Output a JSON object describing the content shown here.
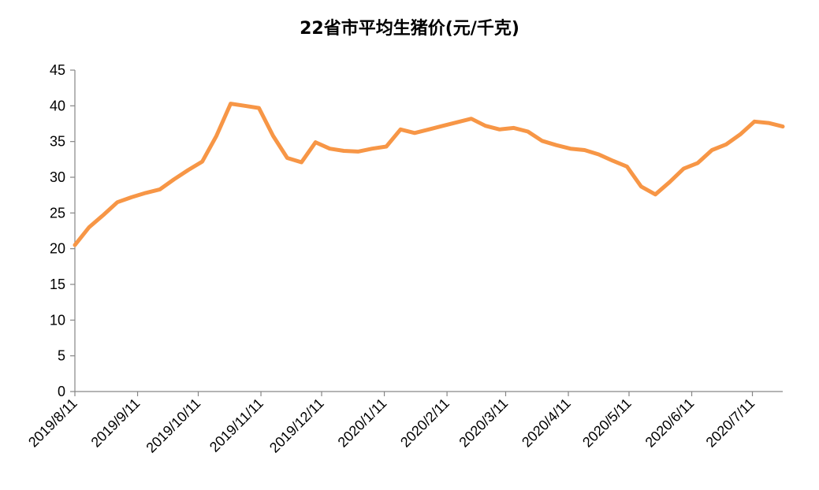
{
  "chart_data": {
    "type": "line",
    "title": "22省市平均生猪价(元/千克)",
    "xlabel": "",
    "ylabel": "",
    "ylim": [
      0,
      45
    ],
    "yticks": [
      0,
      5,
      10,
      15,
      20,
      25,
      30,
      35,
      40,
      45
    ],
    "x_range": [
      "2019-08-11",
      "2020-07-26"
    ],
    "x_ticks": [
      {
        "label": "2019/8/11",
        "date": "2019-08-11"
      },
      {
        "label": "2019/9/11",
        "date": "2019-09-11"
      },
      {
        "label": "2019/10/11",
        "date": "2019-10-11"
      },
      {
        "label": "2019/11/11",
        "date": "2019-11-11"
      },
      {
        "label": "2019/12/11",
        "date": "2019-12-11"
      },
      {
        "label": "2020/1/11",
        "date": "2020-01-11"
      },
      {
        "label": "2020/2/11",
        "date": "2020-02-11"
      },
      {
        "label": "2020/3/11",
        "date": "2020-03-11"
      },
      {
        "label": "2020/4/11",
        "date": "2020-04-11"
      },
      {
        "label": "2020/5/11",
        "date": "2020-05-11"
      },
      {
        "label": "2020/6/11",
        "date": "2020-06-11"
      },
      {
        "label": "2020/7/11",
        "date": "2020-07-11"
      }
    ],
    "grid": false,
    "legend": "none",
    "series": [
      {
        "color": "#F79646",
        "points": [
          [
            "2019-08-11",
            20.5
          ],
          [
            "2019-08-18",
            23.0
          ],
          [
            "2019-08-25",
            24.7
          ],
          [
            "2019-09-01",
            26.5
          ],
          [
            "2019-09-08",
            27.2
          ],
          [
            "2019-09-15",
            27.8
          ],
          [
            "2019-09-22",
            28.3
          ],
          [
            "2019-09-29",
            29.7
          ],
          [
            "2019-10-06",
            31.0
          ],
          [
            "2019-10-13",
            32.2
          ],
          [
            "2019-10-20",
            35.8
          ],
          [
            "2019-10-27",
            40.3
          ],
          [
            "2019-11-03",
            40.0
          ],
          [
            "2019-11-10",
            39.7
          ],
          [
            "2019-11-17",
            35.8
          ],
          [
            "2019-11-24",
            32.7
          ],
          [
            "2019-12-01",
            32.1
          ],
          [
            "2019-12-08",
            34.9
          ],
          [
            "2019-12-15",
            34.0
          ],
          [
            "2019-12-22",
            33.7
          ],
          [
            "2019-12-29",
            33.6
          ],
          [
            "2020-01-05",
            34.0
          ],
          [
            "2020-01-12",
            34.3
          ],
          [
            "2020-01-19",
            36.7
          ],
          [
            "2020-01-26",
            36.2
          ],
          [
            "2020-02-02",
            36.7
          ],
          [
            "2020-02-09",
            37.2
          ],
          [
            "2020-02-16",
            37.7
          ],
          [
            "2020-02-23",
            38.2
          ],
          [
            "2020-03-01",
            37.2
          ],
          [
            "2020-03-08",
            36.7
          ],
          [
            "2020-03-15",
            36.9
          ],
          [
            "2020-03-22",
            36.4
          ],
          [
            "2020-03-29",
            35.1
          ],
          [
            "2020-04-05",
            34.5
          ],
          [
            "2020-04-12",
            34.0
          ],
          [
            "2020-04-19",
            33.8
          ],
          [
            "2020-04-26",
            33.2
          ],
          [
            "2020-05-03",
            32.3
          ],
          [
            "2020-05-10",
            31.5
          ],
          [
            "2020-05-17",
            28.7
          ],
          [
            "2020-05-24",
            27.6
          ],
          [
            "2020-05-31",
            29.3
          ],
          [
            "2020-06-07",
            31.2
          ],
          [
            "2020-06-14",
            32.0
          ],
          [
            "2020-06-21",
            33.8
          ],
          [
            "2020-06-28",
            34.6
          ],
          [
            "2020-07-05",
            36.0
          ],
          [
            "2020-07-12",
            37.8
          ],
          [
            "2020-07-19",
            37.6
          ],
          [
            "2020-07-26",
            37.1
          ]
        ]
      }
    ]
  }
}
